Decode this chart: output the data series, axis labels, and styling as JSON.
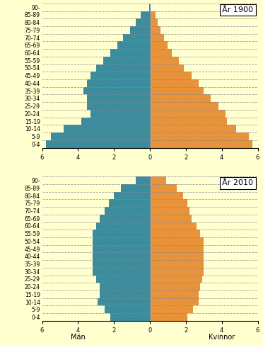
{
  "age_groups": [
    "0-4",
    "5-9",
    "10-14",
    "15-19",
    "20-24",
    "25-29",
    "30-34",
    "35-39",
    "40-44",
    "45-49",
    "50-54",
    "55-59",
    "60-64",
    "65-69",
    "70-74",
    "75-79",
    "80-84",
    "85-89",
    "90-"
  ],
  "1900_men": [
    5.8,
    5.5,
    4.8,
    3.8,
    3.3,
    3.5,
    3.5,
    3.7,
    3.5,
    3.3,
    3.0,
    2.6,
    2.2,
    1.8,
    1.5,
    1.1,
    0.8,
    0.5,
    0.05
  ],
  "1900_women": [
    5.7,
    5.5,
    4.8,
    4.3,
    4.2,
    3.8,
    3.4,
    3.0,
    2.7,
    2.3,
    1.9,
    1.6,
    1.2,
    1.0,
    0.8,
    0.6,
    0.45,
    0.3,
    0.05
  ],
  "2010_men": [
    2.2,
    2.5,
    2.9,
    2.8,
    2.8,
    3.0,
    3.2,
    3.2,
    3.2,
    3.2,
    3.2,
    3.2,
    3.0,
    2.8,
    2.5,
    2.3,
    2.0,
    1.6,
    0.8
  ],
  "2010_women": [
    2.1,
    2.4,
    2.7,
    2.7,
    2.8,
    2.9,
    3.0,
    3.0,
    3.0,
    3.0,
    3.0,
    2.8,
    2.6,
    2.3,
    2.2,
    2.1,
    1.85,
    1.5,
    0.9
  ],
  "men_color": "#3b8c9c",
  "women_color": "#e8923a",
  "bg_color": "#ffffd0",
  "grid_color": "#888899",
  "center_line_color": "#6699bb",
  "xlim": 6,
  "title_1900": "År 1900",
  "title_2010": "År 2010",
  "xlabel_men": "Män",
  "xlabel_women": "Kvinnor"
}
